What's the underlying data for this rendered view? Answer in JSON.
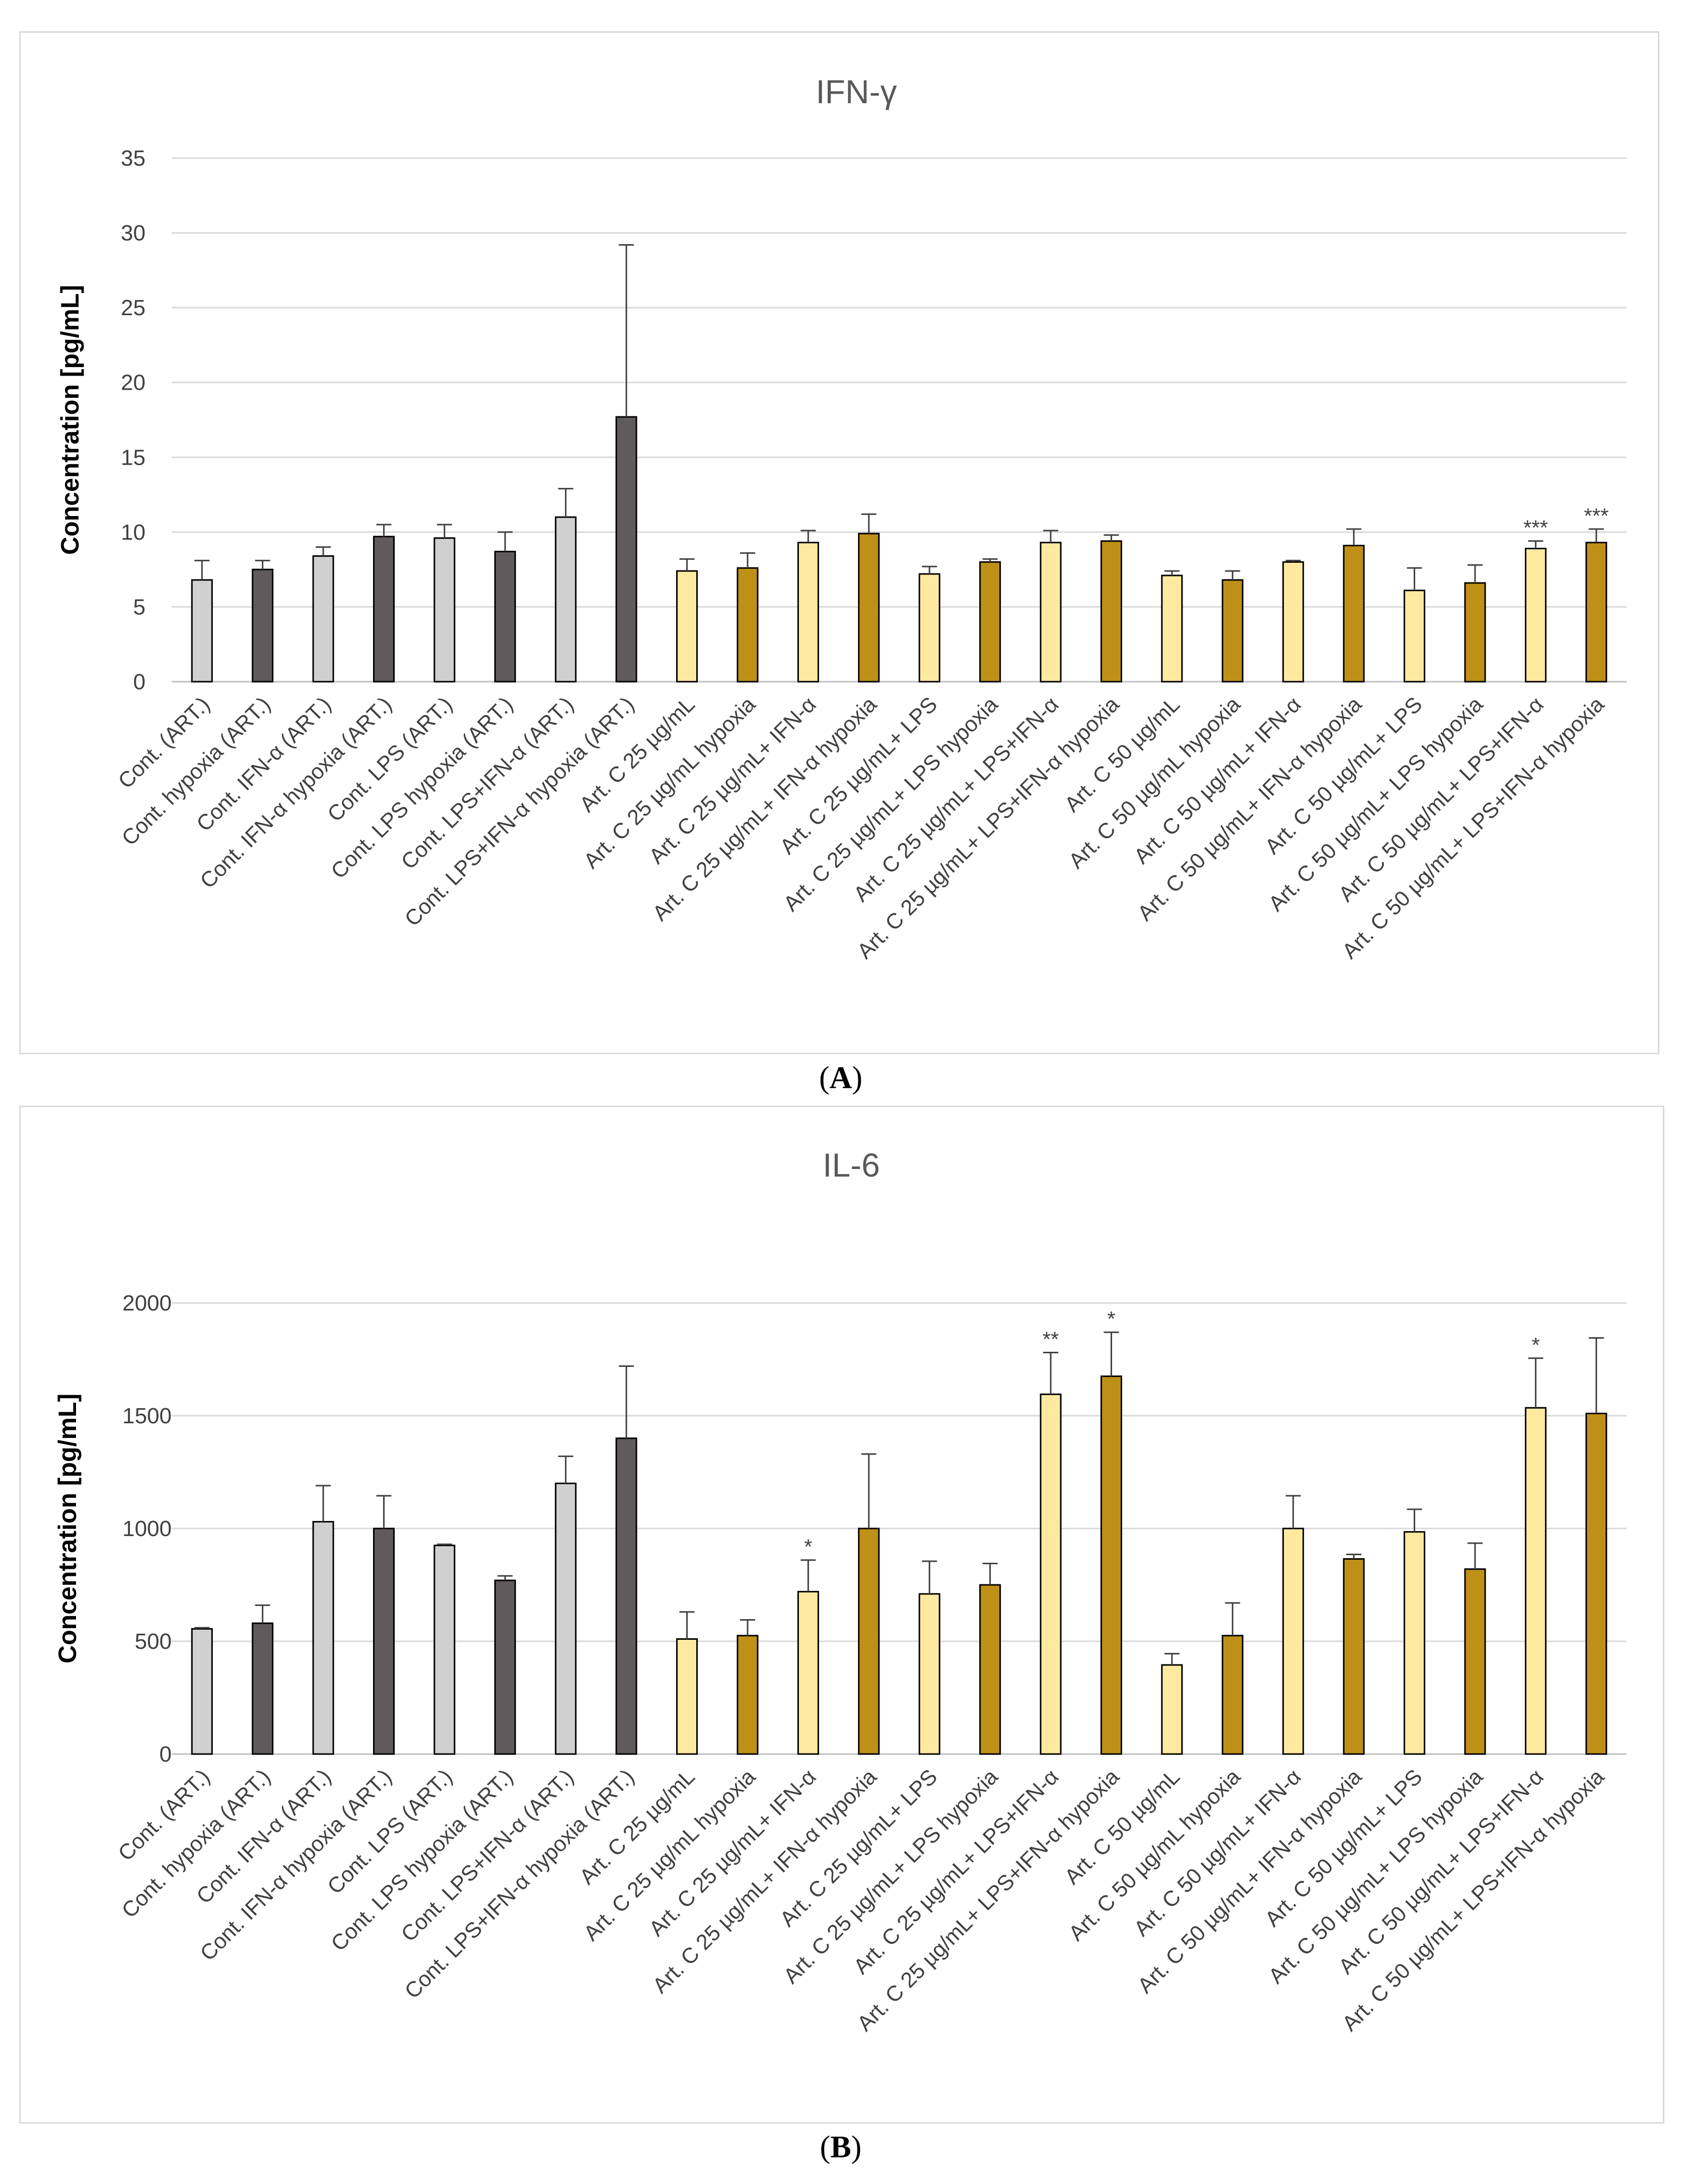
{
  "colors": {
    "light_gray": "#d0d0d0",
    "dark_gray": "#5f5b5d",
    "light_yellow": "#ffe9a1",
    "dark_gold": "#bf9017",
    "bar_border": "#000000",
    "grid": "#d9d9d9",
    "axis_text": "#404040"
  },
  "chart_data": [
    {
      "panel": "A",
      "panel_label": "A",
      "type": "bar",
      "title": "IFN-γ",
      "xlabel": "",
      "ylabel": "Concentration [pg/mL]",
      "ylim": [
        0,
        35
      ],
      "yticks": [
        0,
        5,
        10,
        15,
        20,
        25,
        30,
        35
      ],
      "grid": true,
      "categories": [
        "Cont. (ART.)",
        "Cont. hypoxia (ART.)",
        "Cont. IFN-α (ART.)",
        "Cont. IFN-α hypoxia (ART.)",
        "Cont. LPS (ART.)",
        "Cont. LPS hypoxia (ART.)",
        "Cont. LPS+IFN-α (ART.)",
        "Cont. LPS+IFN-α hypoxia (ART.)",
        "Art. C 25 µg/mL",
        "Art. C 25 µg/mL hypoxia",
        "Art. C 25 µg/mL+ IFN-α",
        "Art. C 25 µg/mL+ IFN-α hypoxia",
        "Art. C 25 µg/mL+ LPS",
        "Art. C 25 µg/mL+ LPS hypoxia",
        "Art. C 25 µg/mL+ LPS+IFN-α",
        "Art. C 25 µg/mL+ LPS+IFN-α hypoxia",
        "Art. C 50 µg/mL",
        "Art. C 50 µg/mL hypoxia",
        "Art. C 50 µg/mL+ IFN-α",
        "Art. C 50 µg/mL+ IFN-α hypoxia",
        "Art. C 50 µg/mL+ LPS",
        "Art. C 50 µg/mL+ LPS hypoxia",
        "Art. C 50 µg/mL+ LPS+IFN-α",
        "Art. C 50 µg/mL+ LPS+IFN-α hypoxia"
      ],
      "values": [
        6.8,
        7.5,
        8.4,
        9.7,
        9.6,
        8.7,
        11.0,
        17.7,
        7.4,
        7.6,
        9.3,
        9.9,
        7.2,
        8.0,
        9.3,
        9.4,
        7.1,
        6.8,
        8.0,
        9.1,
        6.1,
        6.6,
        8.9,
        9.3
      ],
      "errors": [
        1.3,
        0.6,
        0.6,
        0.8,
        0.9,
        1.3,
        1.9,
        11.5,
        0.8,
        1.0,
        0.8,
        1.3,
        0.5,
        0.2,
        0.8,
        0.4,
        0.3,
        0.6,
        0.1,
        1.1,
        1.5,
        1.2,
        0.5,
        0.9
      ],
      "significance": [
        "",
        "",
        "",
        "",
        "",
        "",
        "",
        "",
        "",
        "",
        "",
        "",
        "",
        "",
        "",
        "",
        "",
        "",
        "",
        "",
        "",
        "",
        "***",
        "***"
      ],
      "color_keys": [
        "light_gray",
        "dark_gray",
        "light_gray",
        "dark_gray",
        "light_gray",
        "dark_gray",
        "light_gray",
        "dark_gray",
        "light_yellow",
        "dark_gold",
        "light_yellow",
        "dark_gold",
        "light_yellow",
        "dark_gold",
        "light_yellow",
        "dark_gold",
        "light_yellow",
        "dark_gold",
        "light_yellow",
        "dark_gold",
        "light_yellow",
        "dark_gold",
        "light_yellow",
        "dark_gold"
      ]
    },
    {
      "panel": "B",
      "panel_label": "B",
      "type": "bar",
      "title": "IL-6",
      "xlabel": "",
      "ylabel": "Concentration [pg/mL]",
      "ylim": [
        0,
        2000
      ],
      "yticks": [
        0,
        500,
        1000,
        1500,
        2000
      ],
      "grid": true,
      "categories": [
        "Cont. (ART.)",
        "Cont. hypoxia (ART.)",
        "Cont. IFN-α (ART.)",
        "Cont. IFN-α hypoxia (ART.)",
        "Cont. LPS (ART.)",
        "Cont. LPS hypoxia (ART.)",
        "Cont. LPS+IFN-α (ART.)",
        "Cont. LPS+IFN-α hypoxia (ART.)",
        "Art. C 25 µg/mL",
        "Art. C 25 µg/mL hypoxia",
        "Art. C 25 µg/mL+ IFN-α",
        "Art. C 25 µg/mL+ IFN-α hypoxia",
        "Art. C 25 µg/mL+ LPS",
        "Art. C 25 µg/mL+ LPS hypoxia",
        "Art. C 25 µg/mL+ LPS+IFN-α",
        "Art. C 25 µg/mL+ LPS+IFN-α hypoxia",
        "Art. C 50 µg/mL",
        "Art. C 50 µg/mL hypoxia",
        "Art. C 50 µg/mL+ IFN-α",
        "Art. C 50 µg/mL+ IFN-α hypoxia",
        "Art. C 50 µg/mL+ LPS",
        "Art. C 50 µg/mL+ LPS hypoxia",
        "Art. C 50 µg/mL+ LPS+IFN-α",
        "Art. C 50 µg/mL+ LPS+IFN-α hypoxia"
      ],
      "values": [
        555,
        580,
        1030,
        1000,
        925,
        770,
        1200,
        1400,
        510,
        525,
        720,
        1000,
        710,
        750,
        1595,
        1675,
        395,
        525,
        1000,
        865,
        985,
        820,
        1535,
        1510
      ],
      "errors": [
        5,
        80,
        160,
        145,
        5,
        20,
        120,
        320,
        120,
        70,
        140,
        330,
        145,
        95,
        185,
        195,
        50,
        145,
        145,
        20,
        100,
        115,
        220,
        335
      ],
      "significance": [
        "",
        "",
        "",
        "",
        "",
        "",
        "",
        "",
        "",
        "",
        "*",
        "",
        "",
        "",
        "**",
        "*",
        "",
        "",
        "",
        "",
        "",
        "",
        "*",
        ""
      ],
      "color_keys": [
        "light_gray",
        "dark_gray",
        "light_gray",
        "dark_gray",
        "light_gray",
        "dark_gray",
        "light_gray",
        "dark_gray",
        "light_yellow",
        "dark_gold",
        "light_yellow",
        "dark_gold",
        "light_yellow",
        "dark_gold",
        "light_yellow",
        "dark_gold",
        "light_yellow",
        "dark_gold",
        "light_yellow",
        "dark_gold",
        "light_yellow",
        "dark_gold",
        "light_yellow",
        "dark_gold"
      ]
    }
  ]
}
